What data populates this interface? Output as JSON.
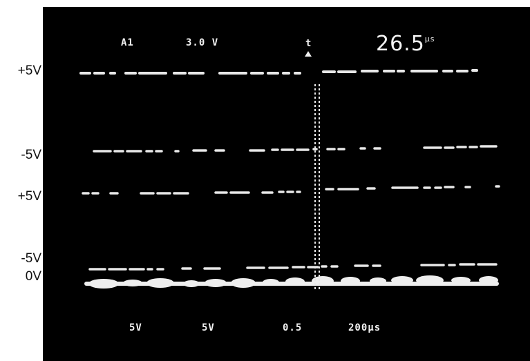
{
  "voltage_labels": [
    "+5V",
    "-5V",
    "+5V",
    "-5V",
    "0V"
  ],
  "header": {
    "channel": "A1",
    "volts": "3.0 V",
    "cursor_label": "t",
    "time_value": "26.5",
    "time_unit": "μs"
  },
  "footer": {
    "ch1_scale": "5V",
    "ch2_scale": "5V",
    "ch3_scale": "0.5",
    "timebase": "200μs"
  },
  "colors": {
    "screen": "#000000",
    "trace": "#e8e8e8",
    "label": "#111111"
  }
}
